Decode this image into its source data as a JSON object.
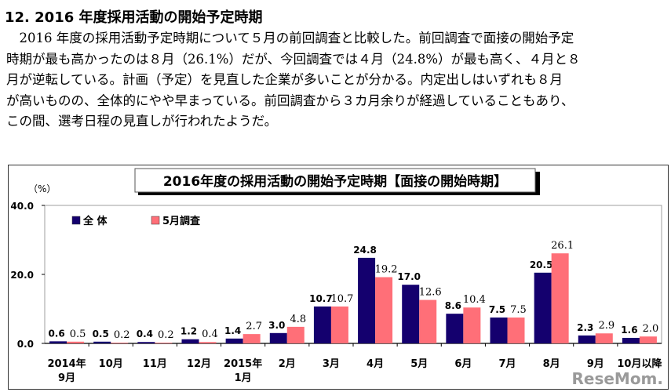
{
  "heading": "12. 2016 年度採用活動の開始予定時期",
  "paragraph": [
    "　2016 年度の採用活動予定時期について５月の前回調査と比較した。前回調査で面接の開始予定",
    "時期が最も高かったのは８月（26.1%）だが、今回調査では４月（24.8%）が最も高く、４月と８",
    "月が逆転している。計画（予定）を見直した企業が多いことが分かる。内定出しはいずれも８月",
    "が高いものの、全体的にやや早まっている。前回調査から３カ月余りが経過していることもあり、",
    "この間、選考日程の見直しが行われたようだ。"
  ],
  "watermark": "ReseMom.",
  "chart_data": {
    "type": "bar",
    "title": "2016年度の採用活動の開始予定時期【面接の開始時期】",
    "ylabel": "（%）",
    "ylim": [
      0,
      40
    ],
    "yticks": [
      "0.0",
      "20.0",
      "40.0"
    ],
    "ytick_values": [
      0,
      20,
      40
    ],
    "grid": false,
    "legend_position": "top-left",
    "categories": [
      [
        "2014年",
        "9月"
      ],
      [
        "10月"
      ],
      [
        "11月"
      ],
      [
        "12月"
      ],
      [
        "2015年",
        "1月"
      ],
      [
        "2月"
      ],
      [
        "3月"
      ],
      [
        "4月"
      ],
      [
        "5月"
      ],
      [
        "6月"
      ],
      [
        "7月"
      ],
      [
        "8月"
      ],
      [
        "9月"
      ],
      [
        "10月以降"
      ]
    ],
    "series": [
      {
        "name": "全 体",
        "color": "#14006e",
        "values": [
          0.6,
          0.5,
          0.4,
          1.2,
          1.4,
          3.0,
          10.7,
          24.8,
          17.0,
          8.6,
          7.5,
          20.5,
          2.3,
          1.6
        ]
      },
      {
        "name": "5月調査",
        "color": "#ff6f78",
        "values": [
          0.5,
          0.2,
          0.2,
          0.4,
          2.7,
          4.8,
          10.7,
          19.2,
          12.6,
          10.4,
          7.5,
          26.1,
          2.9,
          2.0
        ]
      }
    ]
  }
}
